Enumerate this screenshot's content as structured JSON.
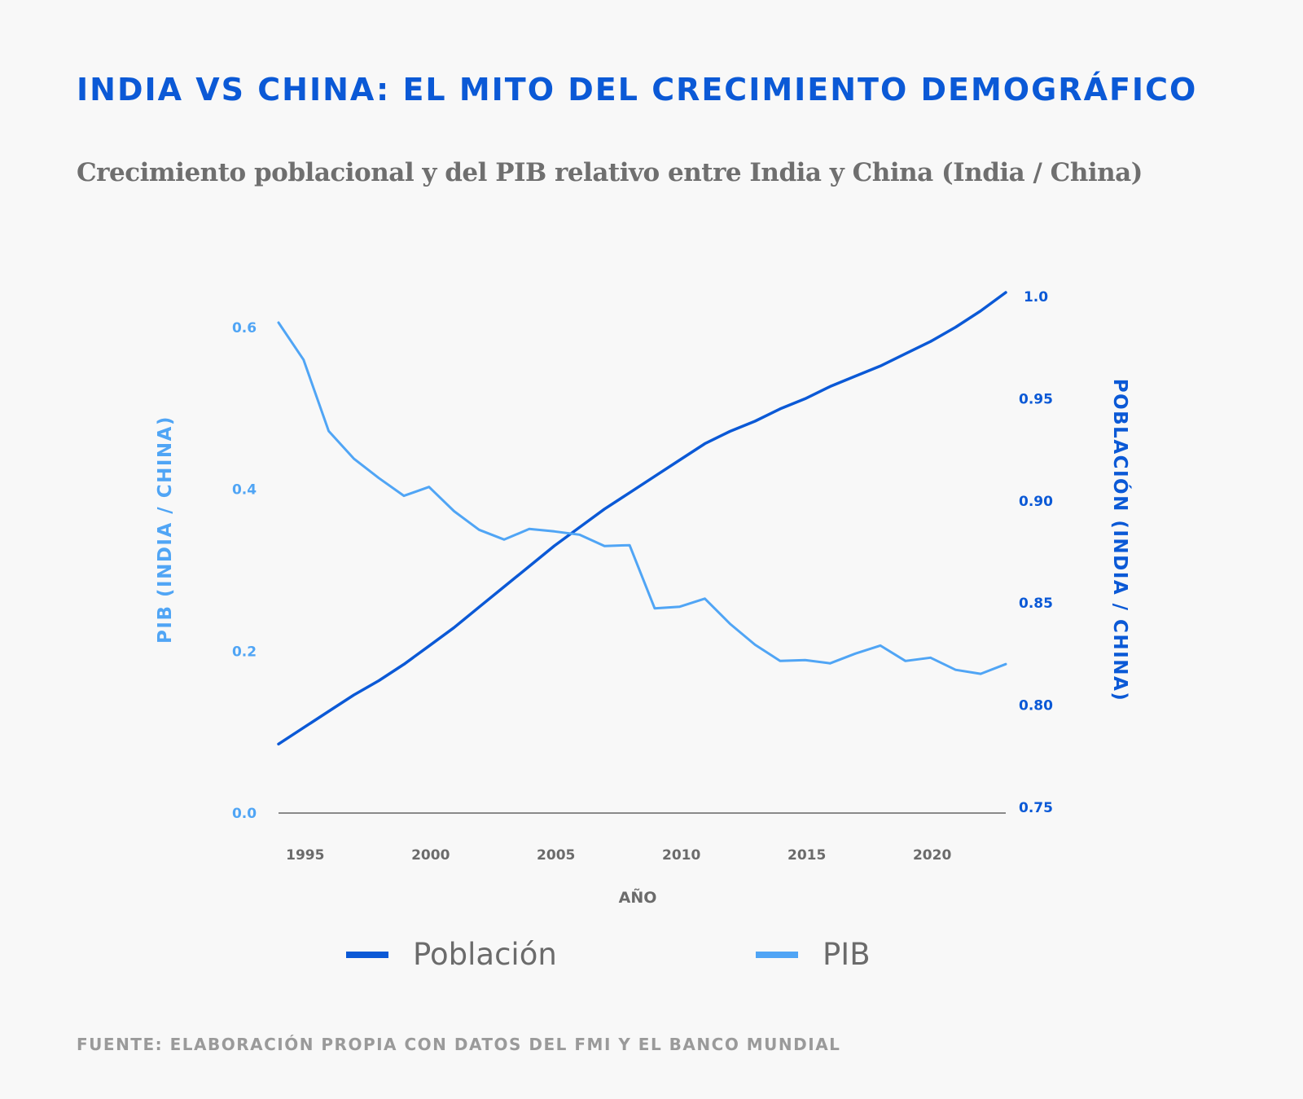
{
  "header": {
    "title": "INDIA VS CHINA: EL MITO DEL CRECIMIENTO DEMOGRÁFICO",
    "subtitle": "Crecimiento poblacional y del PIB relativo entre India y China (India / China)"
  },
  "footer": {
    "source": "FUENTE: ELABORACIÓN PROPIA CON DATOS DEL FMI Y EL BANCO MUNDIAL"
  },
  "legend": {
    "poblacion_label": "Población",
    "pib_label": "PIB"
  },
  "colors": {
    "title": "#0b59d6",
    "poblacion": "#0b59d6",
    "pib": "#50a5f5",
    "axis": "#666666",
    "tick_x": "#6b6b6b"
  },
  "chart_data": {
    "type": "line",
    "title": "Crecimiento poblacional y del PIB relativo entre India y China (India / China)",
    "xlabel": "AÑO",
    "ylabel_left": "PIB (INDIA / CHINA)",
    "ylabel_right": "POBLACIÓN (INDIA / CHINA)",
    "xlim": [
      1994,
      2023
    ],
    "x_ticks": [
      1995,
      2000,
      2005,
      2010,
      2015,
      2020
    ],
    "ylim_left": [
      0.0,
      0.6
    ],
    "y_ticks_left": [
      "0.0",
      "0.2",
      "0.4",
      "0.6"
    ],
    "ylim_right": [
      0.75,
      1.0
    ],
    "y_ticks_right": [
      "0.75",
      "0.80",
      "0.85",
      "0.90",
      "0.95",
      "1.0"
    ],
    "grid": false,
    "x": [
      1994,
      1995,
      1996,
      1997,
      1998,
      1999,
      2000,
      2001,
      2002,
      2003,
      2004,
      2005,
      2006,
      2007,
      2008,
      2009,
      2010,
      2011,
      2012,
      2013,
      2014,
      2015,
      2016,
      2017,
      2018,
      2019,
      2020,
      2021,
      2022,
      2023
    ],
    "series": [
      {
        "name": "Población",
        "axis": "right",
        "values": [
          0.781,
          0.789,
          0.797,
          0.805,
          0.812,
          0.82,
          0.829,
          0.838,
          0.848,
          0.858,
          0.868,
          0.878,
          0.887,
          0.896,
          0.904,
          0.912,
          0.92,
          0.928,
          0.934,
          0.939,
          0.945,
          0.95,
          0.956,
          0.961,
          0.966,
          0.972,
          0.978,
          0.985,
          0.993,
          1.002
        ]
      },
      {
        "name": "PIB",
        "axis": "left",
        "values": [
          0.606,
          0.56,
          0.472,
          0.438,
          0.414,
          0.392,
          0.403,
          0.373,
          0.35,
          0.338,
          0.351,
          0.348,
          0.344,
          0.33,
          0.331,
          0.253,
          0.255,
          0.265,
          0.234,
          0.208,
          0.188,
          0.189,
          0.185,
          0.197,
          0.207,
          0.188,
          0.192,
          0.177,
          0.172,
          0.184
        ]
      }
    ]
  }
}
